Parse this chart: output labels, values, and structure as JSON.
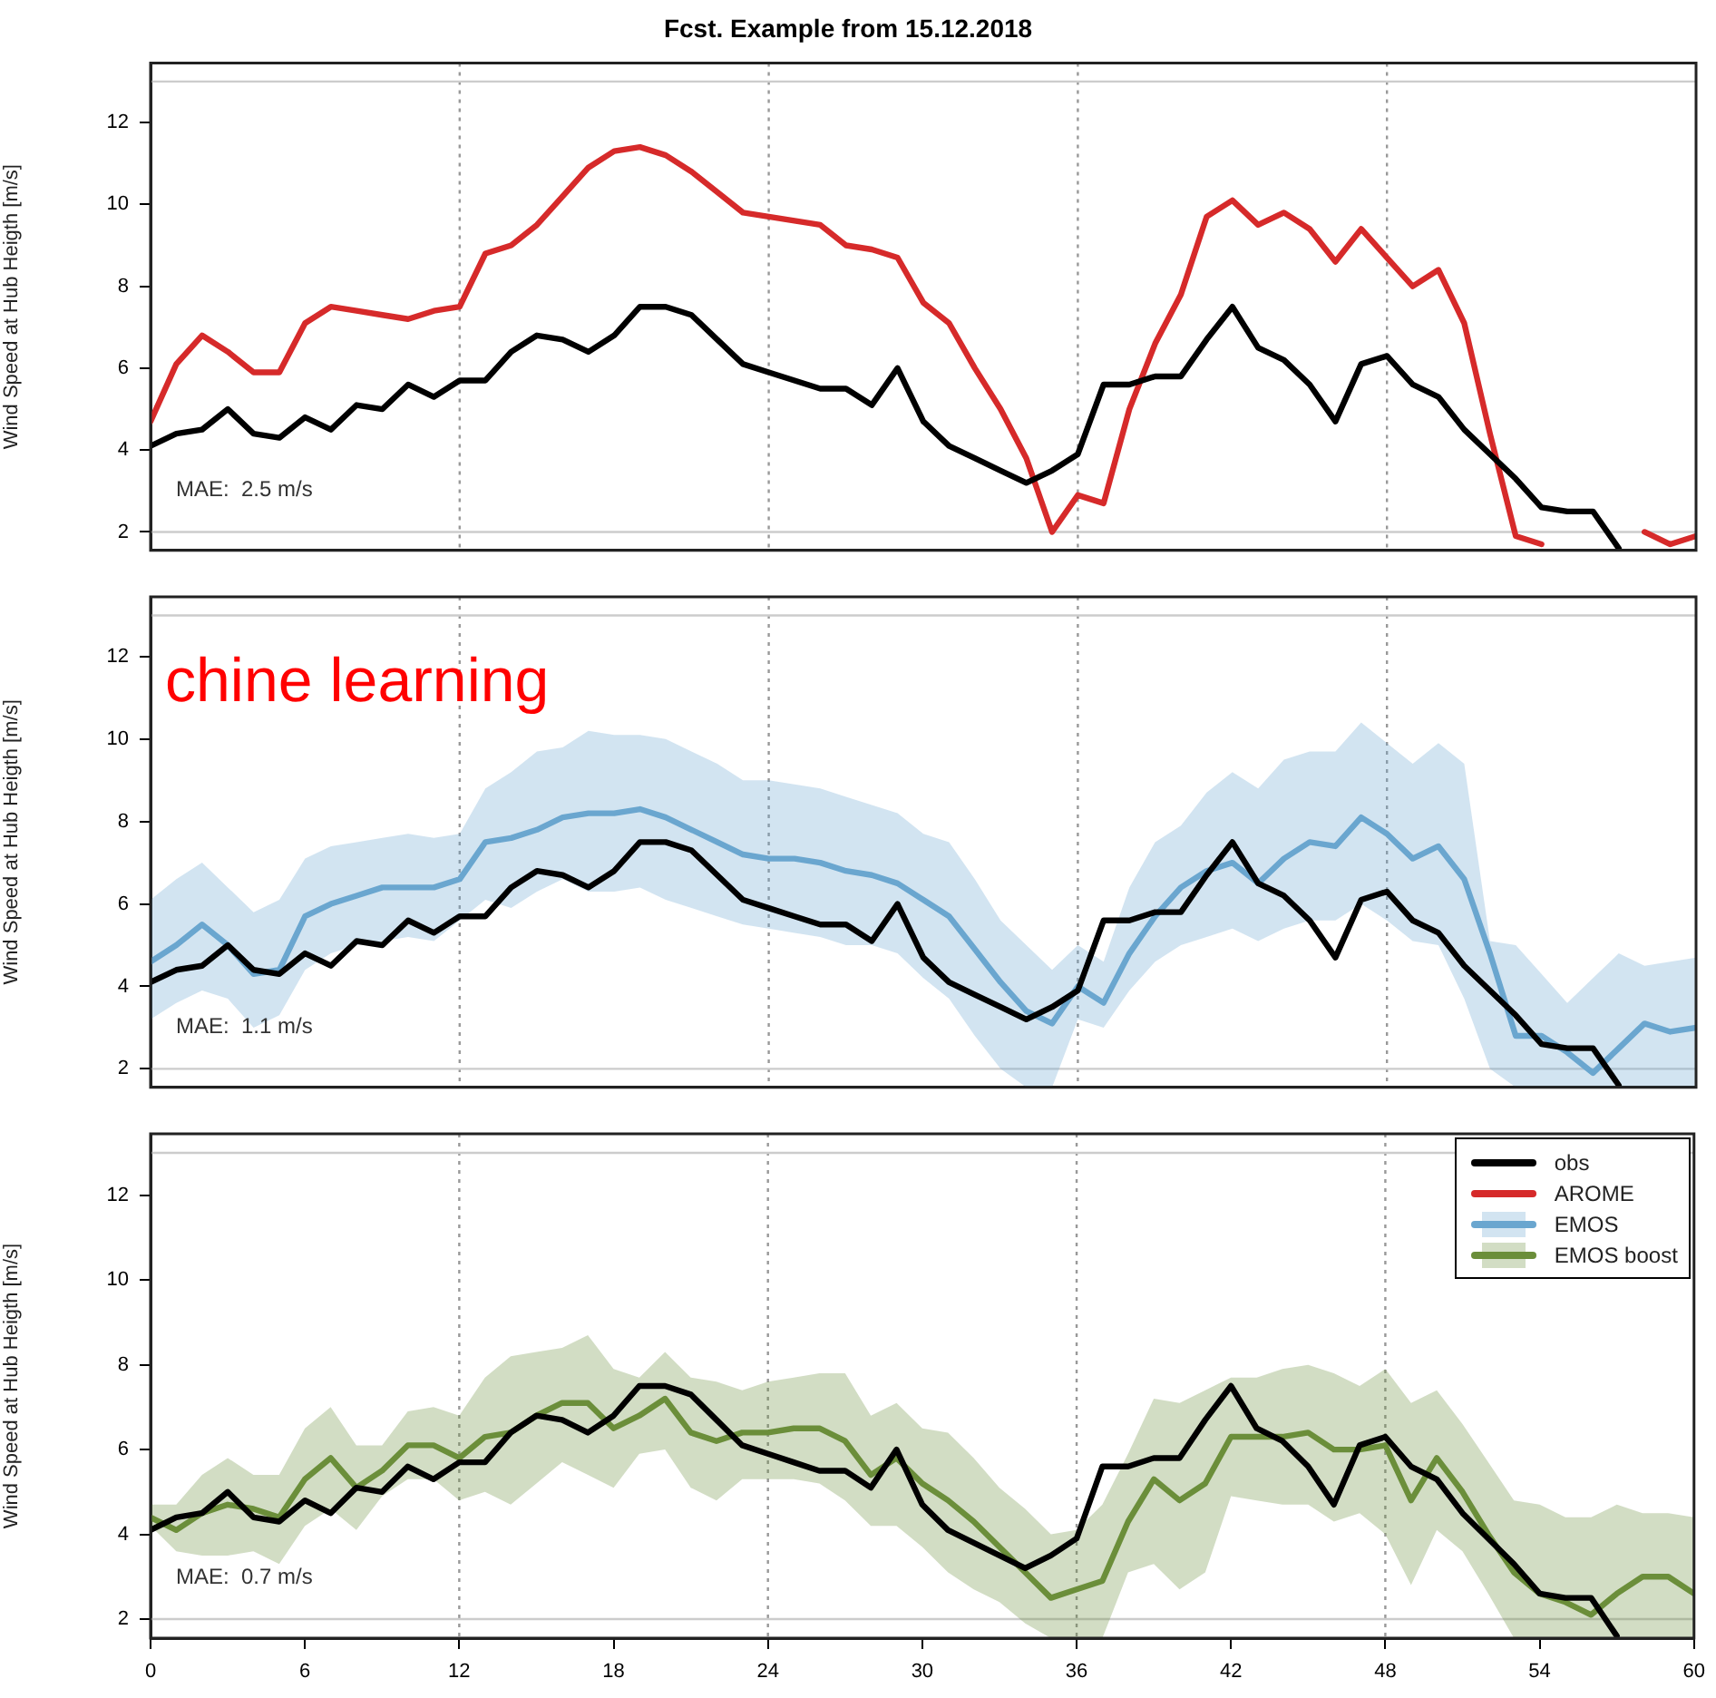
{
  "chart_data": [
    {
      "type": "line",
      "title": "Fcst. Example from 15.12.2018",
      "ylabel": "Wind Speed at Hub Heigth [m/s]",
      "x": [
        0,
        1,
        2,
        3,
        4,
        5,
        6,
        7,
        8,
        9,
        10,
        11,
        12,
        13,
        14,
        15,
        16,
        17,
        18,
        19,
        20,
        21,
        22,
        23,
        24,
        25,
        26,
        27,
        28,
        29,
        30,
        31,
        32,
        33,
        34,
        35,
        36,
        37,
        38,
        39,
        40,
        41,
        42,
        43,
        44,
        45,
        46,
        47,
        48,
        49,
        50,
        51,
        52,
        53,
        54,
        55,
        56,
        57,
        58,
        59,
        60
      ],
      "series": [
        {
          "color": "#000000",
          "values": [
            4.1,
            4.4,
            4.5,
            5.0,
            4.4,
            4.3,
            4.8,
            4.5,
            5.1,
            5.0,
            5.6,
            5.3,
            5.7,
            5.7,
            6.4,
            6.8,
            6.7,
            6.4,
            6.8,
            7.5,
            7.5,
            7.3,
            6.7,
            6.1,
            5.9,
            5.7,
            5.5,
            5.5,
            5.1,
            6.0,
            4.7,
            4.1,
            3.8,
            3.5,
            3.2,
            3.5,
            3.9,
            5.6,
            5.6,
            5.8,
            5.8,
            6.7,
            7.5,
            6.5,
            6.2,
            5.6,
            4.7,
            6.1,
            6.3,
            5.6,
            5.3,
            4.5,
            3.9,
            3.3,
            2.6,
            2.5,
            2.5,
            1.6,
            null,
            null,
            null
          ]
        },
        {
          "color": "#d62a2a",
          "values": [
            4.7,
            6.1,
            6.8,
            6.4,
            5.9,
            5.9,
            7.1,
            7.5,
            7.4,
            7.3,
            7.2,
            7.4,
            7.5,
            8.8,
            9.0,
            9.5,
            10.2,
            10.9,
            11.3,
            11.4,
            11.2,
            10.8,
            10.3,
            9.8,
            9.7,
            9.6,
            9.5,
            9.0,
            8.9,
            8.7,
            7.6,
            7.1,
            6.0,
            5.0,
            3.8,
            2.0,
            2.9,
            2.7,
            5.0,
            6.6,
            7.8,
            9.7,
            10.1,
            9.5,
            9.8,
            9.4,
            8.6,
            9.4,
            8.7,
            8.0,
            8.4,
            7.1,
            4.4,
            1.9,
            1.7,
            null,
            null,
            null,
            2.0,
            1.7,
            1.9
          ]
        }
      ],
      "xlim": [
        0,
        60
      ],
      "xticks": [
        0,
        6,
        12,
        18,
        24,
        30,
        36,
        42,
        48,
        54,
        60
      ],
      "ylim": [
        1.55,
        13.45
      ],
      "yticks": [
        2,
        4,
        6,
        8,
        10,
        12
      ],
      "tick_labels": "y",
      "grid": false,
      "marker": "none",
      "line_style": "solid",
      "ref_lines": [
        {
          "axis": "x",
          "value": 12,
          "color": "#999999",
          "line_style": "dotted"
        },
        {
          "axis": "x",
          "value": 24,
          "color": "#999999",
          "line_style": "dotted"
        },
        {
          "axis": "x",
          "value": 36,
          "color": "#999999",
          "line_style": "dotted"
        },
        {
          "axis": "x",
          "value": 48,
          "color": "#999999",
          "line_style": "dotted"
        },
        {
          "axis": "y",
          "value": 2,
          "color": "#cccccc",
          "line_style": "solid"
        },
        {
          "axis": "y",
          "value": 13,
          "color": "#cccccc",
          "line_style": "solid"
        }
      ],
      "annotations": [
        "MAE:  2.5 m/s"
      ]
    },
    {
      "type": "line",
      "ylabel": "Wind Speed at Hub Heigth [m/s]",
      "x": [
        0,
        1,
        2,
        3,
        4,
        5,
        6,
        7,
        8,
        9,
        10,
        11,
        12,
        13,
        14,
        15,
        16,
        17,
        18,
        19,
        20,
        21,
        22,
        23,
        24,
        25,
        26,
        27,
        28,
        29,
        30,
        31,
        32,
        33,
        34,
        35,
        36,
        37,
        38,
        39,
        40,
        41,
        42,
        43,
        44,
        45,
        46,
        47,
        48,
        49,
        50,
        51,
        52,
        53,
        54,
        55,
        56,
        57,
        58,
        59,
        60
      ],
      "series": [
        {
          "color": "#000000",
          "values": [
            4.1,
            4.4,
            4.5,
            5.0,
            4.4,
            4.3,
            4.8,
            4.5,
            5.1,
            5.0,
            5.6,
            5.3,
            5.7,
            5.7,
            6.4,
            6.8,
            6.7,
            6.4,
            6.8,
            7.5,
            7.5,
            7.3,
            6.7,
            6.1,
            5.9,
            5.7,
            5.5,
            5.5,
            5.1,
            6.0,
            4.7,
            4.1,
            3.8,
            3.5,
            3.2,
            3.5,
            3.9,
            5.6,
            5.6,
            5.8,
            5.8,
            6.7,
            7.5,
            6.5,
            6.2,
            5.6,
            4.7,
            6.1,
            6.3,
            5.6,
            5.3,
            4.5,
            3.9,
            3.3,
            2.6,
            2.5,
            2.5,
            1.6,
            null,
            null,
            null
          ]
        },
        {
          "color": "#6aa6cf",
          "values": [
            4.6,
            5.0,
            5.5,
            5.0,
            4.3,
            4.4,
            5.7,
            6.0,
            6.2,
            6.4,
            6.4,
            6.4,
            6.6,
            7.5,
            7.6,
            7.8,
            8.1,
            8.2,
            8.2,
            8.3,
            8.1,
            7.8,
            7.5,
            7.2,
            7.1,
            7.1,
            7.0,
            6.8,
            6.7,
            6.5,
            6.1,
            5.7,
            4.9,
            4.1,
            3.4,
            3.1,
            4.0,
            3.6,
            4.8,
            5.7,
            6.4,
            6.8,
            7.0,
            6.5,
            7.1,
            7.5,
            7.4,
            8.1,
            7.7,
            7.1,
            7.4,
            6.6,
            4.8,
            2.8,
            2.8,
            2.4,
            1.9,
            2.5,
            3.1,
            2.9,
            3.0
          ],
          "upper": [
            6.1,
            6.6,
            7.0,
            6.4,
            5.8,
            6.1,
            7.1,
            7.4,
            7.5,
            7.6,
            7.7,
            7.6,
            7.7,
            8.8,
            9.2,
            9.7,
            9.8,
            10.2,
            10.1,
            10.1,
            10.0,
            9.7,
            9.4,
            9.0,
            9.0,
            8.9,
            8.8,
            8.6,
            8.4,
            8.2,
            7.7,
            7.5,
            6.6,
            5.6,
            5.0,
            4.4,
            5.0,
            4.6,
            6.4,
            7.5,
            7.9,
            8.7,
            9.2,
            8.8,
            9.5,
            9.7,
            9.7,
            10.4,
            9.9,
            9.4,
            9.9,
            9.4,
            5.1,
            5.0,
            4.3,
            3.6,
            4.2,
            4.8,
            4.5,
            4.6,
            4.7
          ],
          "lower": [
            3.2,
            3.6,
            3.9,
            3.7,
            3.0,
            3.3,
            4.4,
            4.8,
            5.0,
            5.1,
            5.2,
            5.1,
            5.6,
            6.1,
            5.9,
            6.3,
            6.6,
            6.3,
            6.3,
            6.4,
            6.1,
            5.9,
            5.7,
            5.5,
            5.4,
            5.3,
            5.2,
            5.0,
            5.0,
            4.8,
            4.2,
            3.7,
            2.8,
            2.0,
            1.55,
            1.55,
            3.2,
            3.0,
            3.9,
            4.6,
            5.0,
            5.2,
            5.4,
            5.1,
            5.4,
            5.6,
            5.6,
            6.0,
            5.6,
            5.1,
            5.0,
            3.7,
            2.0,
            1.55,
            1.55,
            1.55,
            1.55,
            1.55,
            1.55,
            1.55,
            1.55
          ]
        }
      ],
      "xlim": [
        0,
        60
      ],
      "xticks": [
        0,
        6,
        12,
        18,
        24,
        30,
        36,
        42,
        48,
        54,
        60
      ],
      "ylim": [
        1.55,
        13.45
      ],
      "yticks": [
        2,
        4,
        6,
        8,
        10,
        12
      ],
      "tick_labels": "y",
      "grid": false,
      "marker": "none",
      "line_style": "solid",
      "ref_lines": [
        {
          "axis": "x",
          "value": 12,
          "color": "#999999",
          "line_style": "dotted"
        },
        {
          "axis": "x",
          "value": 24,
          "color": "#999999",
          "line_style": "dotted"
        },
        {
          "axis": "x",
          "value": 36,
          "color": "#999999",
          "line_style": "dotted"
        },
        {
          "axis": "x",
          "value": 48,
          "color": "#999999",
          "line_style": "dotted"
        },
        {
          "axis": "y",
          "value": 2,
          "color": "#cccccc",
          "line_style": "solid"
        },
        {
          "axis": "y",
          "value": 13,
          "color": "#cccccc",
          "line_style": "solid"
        }
      ],
      "annotations": [
        "MAE:  1.1 m/s",
        "chine learning"
      ]
    },
    {
      "type": "line",
      "ylabel": "Wind Speed at Hub Heigth [m/s]",
      "x": [
        0,
        1,
        2,
        3,
        4,
        5,
        6,
        7,
        8,
        9,
        10,
        11,
        12,
        13,
        14,
        15,
        16,
        17,
        18,
        19,
        20,
        21,
        22,
        23,
        24,
        25,
        26,
        27,
        28,
        29,
        30,
        31,
        32,
        33,
        34,
        35,
        36,
        37,
        38,
        39,
        40,
        41,
        42,
        43,
        44,
        45,
        46,
        47,
        48,
        49,
        50,
        51,
        52,
        53,
        54,
        55,
        56,
        57,
        58,
        59,
        60
      ],
      "series": [
        {
          "name": "obs",
          "color": "#000000",
          "values": [
            4.1,
            4.4,
            4.5,
            5.0,
            4.4,
            4.3,
            4.8,
            4.5,
            5.1,
            5.0,
            5.6,
            5.3,
            5.7,
            5.7,
            6.4,
            6.8,
            6.7,
            6.4,
            6.8,
            7.5,
            7.5,
            7.3,
            6.7,
            6.1,
            5.9,
            5.7,
            5.5,
            5.5,
            5.1,
            6.0,
            4.7,
            4.1,
            3.8,
            3.5,
            3.2,
            3.5,
            3.9,
            5.6,
            5.6,
            5.8,
            5.8,
            6.7,
            7.5,
            6.5,
            6.2,
            5.6,
            4.7,
            6.1,
            6.3,
            5.6,
            5.3,
            4.5,
            3.9,
            3.3,
            2.6,
            2.5,
            2.5,
            1.6,
            null,
            null,
            null
          ]
        },
        {
          "name": "AROME",
          "color": "#d62a2a",
          "values": [
            null,
            null,
            null,
            null,
            null,
            null,
            null,
            null,
            null,
            null,
            null,
            null,
            null,
            null,
            null,
            null,
            null,
            null,
            null,
            null,
            null,
            null,
            null,
            null,
            null,
            null,
            null,
            null,
            null,
            null,
            null,
            null,
            null,
            null,
            null,
            null,
            null,
            null,
            null,
            null,
            null,
            null,
            null,
            null,
            null,
            null,
            null,
            null,
            null,
            null,
            null,
            null,
            null,
            null,
            null,
            null,
            null,
            null,
            null,
            null,
            null
          ]
        },
        {
          "name": "EMOS",
          "color": "#6aa6cf",
          "values": [
            null,
            null,
            null,
            null,
            null,
            null,
            null,
            null,
            null,
            null,
            null,
            null,
            null,
            null,
            null,
            null,
            null,
            null,
            null,
            null,
            null,
            null,
            null,
            null,
            null,
            null,
            null,
            null,
            null,
            null,
            null,
            null,
            null,
            null,
            null,
            null,
            null,
            null,
            null,
            null,
            null,
            null,
            null,
            null,
            null,
            null,
            null,
            null,
            null,
            null,
            null,
            null,
            null,
            null,
            null,
            null,
            null,
            null,
            null,
            null,
            null
          ],
          "upper": [
            null,
            null,
            null,
            null,
            null,
            null,
            null,
            null,
            null,
            null,
            null,
            null,
            null,
            null,
            null,
            null,
            null,
            null,
            null,
            null,
            null,
            null,
            null,
            null,
            null,
            null,
            null,
            null,
            null,
            null,
            null,
            null,
            null,
            null,
            null,
            null,
            null,
            null,
            null,
            null,
            null,
            null,
            null,
            null,
            null,
            null,
            null,
            null,
            null,
            null,
            null,
            null,
            null,
            null,
            null,
            null,
            null,
            null,
            null,
            null,
            null
          ],
          "lower": [
            null,
            null,
            null,
            null,
            null,
            null,
            null,
            null,
            null,
            null,
            null,
            null,
            null,
            null,
            null,
            null,
            null,
            null,
            null,
            null,
            null,
            null,
            null,
            null,
            null,
            null,
            null,
            null,
            null,
            null,
            null,
            null,
            null,
            null,
            null,
            null,
            null,
            null,
            null,
            null,
            null,
            null,
            null,
            null,
            null,
            null,
            null,
            null,
            null,
            null,
            null,
            null,
            null,
            null,
            null,
            null,
            null,
            null,
            null,
            null,
            null
          ]
        },
        {
          "name": "EMOS boost",
          "color": "#6b8e3a",
          "values": [
            4.4,
            4.1,
            4.5,
            4.7,
            4.6,
            4.4,
            5.3,
            5.8,
            5.1,
            5.5,
            6.1,
            6.1,
            5.8,
            6.3,
            6.4,
            6.8,
            7.1,
            7.1,
            6.5,
            6.8,
            7.2,
            6.4,
            6.2,
            6.4,
            6.4,
            6.5,
            6.5,
            6.2,
            5.4,
            5.8,
            5.2,
            4.8,
            4.3,
            3.7,
            3.1,
            2.5,
            2.7,
            2.9,
            4.3,
            5.3,
            4.8,
            5.2,
            6.3,
            6.3,
            6.3,
            6.4,
            6.0,
            6.0,
            6.1,
            4.8,
            5.8,
            5.0,
            4.0,
            3.1,
            2.6,
            2.4,
            2.1,
            2.6,
            3.0,
            3.0,
            2.6
          ],
          "upper": [
            4.7,
            4.7,
            5.4,
            5.8,
            5.4,
            5.4,
            6.5,
            7.0,
            6.1,
            6.1,
            6.9,
            7.0,
            6.8,
            7.7,
            8.2,
            8.3,
            8.4,
            8.7,
            7.9,
            7.7,
            8.3,
            7.7,
            7.6,
            7.4,
            7.6,
            7.7,
            7.8,
            7.8,
            6.8,
            7.1,
            6.5,
            6.4,
            5.8,
            5.1,
            4.6,
            4.0,
            4.1,
            4.7,
            5.9,
            7.2,
            7.1,
            7.4,
            7.7,
            7.7,
            7.9,
            8.0,
            7.8,
            7.5,
            7.9,
            7.1,
            7.4,
            6.6,
            5.7,
            4.8,
            4.7,
            4.4,
            4.4,
            4.7,
            4.5,
            4.5,
            4.4
          ],
          "lower": [
            4.2,
            3.6,
            3.5,
            3.5,
            3.6,
            3.3,
            4.2,
            4.6,
            4.1,
            4.9,
            5.3,
            5.3,
            4.8,
            5.0,
            4.7,
            5.2,
            5.7,
            5.4,
            5.1,
            5.9,
            6.0,
            5.1,
            4.8,
            5.3,
            5.3,
            5.3,
            5.2,
            4.8,
            4.2,
            4.2,
            3.7,
            3.1,
            2.7,
            2.4,
            1.9,
            1.55,
            1.55,
            1.55,
            3.1,
            3.3,
            2.7,
            3.1,
            4.9,
            4.8,
            4.7,
            4.7,
            4.3,
            4.5,
            4.0,
            2.8,
            4.1,
            3.6,
            2.6,
            1.55,
            1.55,
            1.55,
            1.55,
            1.55,
            1.55,
            1.55,
            1.55
          ]
        }
      ],
      "xlim": [
        0,
        60
      ],
      "xticks": [
        0,
        6,
        12,
        18,
        24,
        30,
        36,
        42,
        48,
        54,
        60
      ],
      "ylim": [
        1.55,
        13.45
      ],
      "yticks": [
        2,
        4,
        6,
        8,
        10,
        12
      ],
      "grid": false,
      "marker": "none",
      "line_style": "solid",
      "legend": "top right",
      "ref_lines": [
        {
          "axis": "x",
          "value": 12,
          "color": "#999999",
          "line_style": "dotted"
        },
        {
          "axis": "x",
          "value": 24,
          "color": "#999999",
          "line_style": "dotted"
        },
        {
          "axis": "x",
          "value": 36,
          "color": "#999999",
          "line_style": "dotted"
        },
        {
          "axis": "x",
          "value": 48,
          "color": "#999999",
          "line_style": "dotted"
        },
        {
          "axis": "y",
          "value": 2,
          "color": "#cccccc",
          "line_style": "solid"
        },
        {
          "axis": "y",
          "value": 13,
          "color": "#cccccc",
          "line_style": "solid"
        }
      ],
      "annotations": [
        "MAE:  0.7 m/s"
      ]
    }
  ]
}
